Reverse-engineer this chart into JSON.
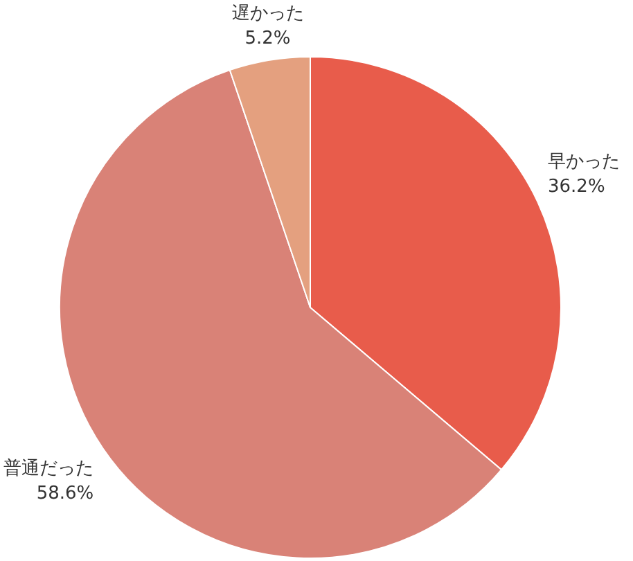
{
  "chart_data": {
    "type": "pie",
    "categories": [
      "早かった",
      "普通だった",
      "遅かった"
    ],
    "values": [
      36.2,
      58.6,
      5.2
    ],
    "value_labels": [
      "36.2%",
      "58.6%",
      "5.2%"
    ],
    "colors": [
      "#e85c4b",
      "#d98277",
      "#e4a07f"
    ]
  }
}
